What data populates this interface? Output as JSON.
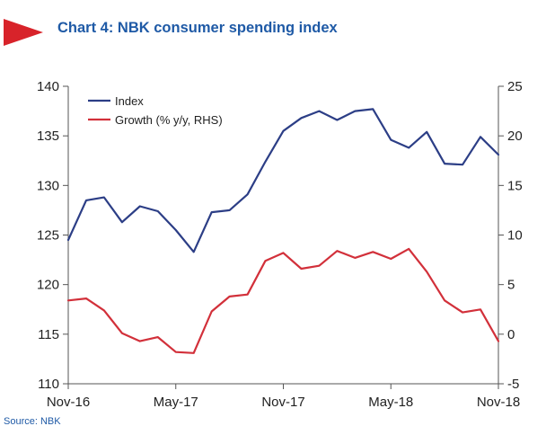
{
  "title": "Chart 4: NBK consumer spending index",
  "source": "Source: NBK",
  "colors": {
    "marker": "#d8232a",
    "title": "#1f5aa6",
    "index": "#2c3e86",
    "growth": "#d2303a"
  },
  "chart_data": {
    "type": "line",
    "x": [
      "Nov-16",
      "Dec-16",
      "Jan-17",
      "Feb-17",
      "Mar-17",
      "Apr-17",
      "May-17",
      "Jun-17",
      "Jul-17",
      "Aug-17",
      "Sep-17",
      "Oct-17",
      "Nov-17",
      "Dec-17",
      "Jan-18",
      "Feb-18",
      "Mar-18",
      "Apr-18",
      "May-18",
      "Jun-18",
      "Jul-18",
      "Aug-18",
      "Sep-18",
      "Oct-18",
      "Nov-18"
    ],
    "x_tick_labels": [
      "Nov-16",
      "May-17",
      "Nov-17",
      "May-18",
      "Nov-18"
    ],
    "series": [
      {
        "name": "Index",
        "axis": "left",
        "values": [
          124.5,
          128.5,
          128.8,
          126.3,
          127.9,
          127.4,
          125.5,
          123.3,
          127.3,
          127.5,
          129.1,
          132.4,
          135.5,
          136.8,
          137.5,
          136.6,
          137.5,
          137.7,
          134.6,
          133.8,
          135.4,
          132.2,
          132.1,
          134.9,
          133.1
        ]
      },
      {
        "name": "Growth (% y/y, RHS)",
        "axis": "right",
        "values": [
          3.4,
          3.6,
          2.4,
          0.1,
          -0.7,
          -0.3,
          -1.8,
          -1.9,
          2.3,
          3.8,
          4.0,
          7.4,
          8.2,
          6.6,
          6.9,
          8.4,
          7.7,
          8.3,
          7.6,
          8.6,
          6.3,
          3.4,
          2.2,
          2.5,
          -0.7
        ]
      }
    ],
    "y_left": {
      "min": 110,
      "max": 140,
      "ticks": [
        110,
        115,
        120,
        125,
        130,
        135,
        140
      ]
    },
    "y_right": {
      "min": -5,
      "max": 25,
      "ticks": [
        -5,
        0,
        5,
        10,
        15,
        20,
        25
      ]
    },
    "grid": false,
    "legend": "top-left"
  }
}
